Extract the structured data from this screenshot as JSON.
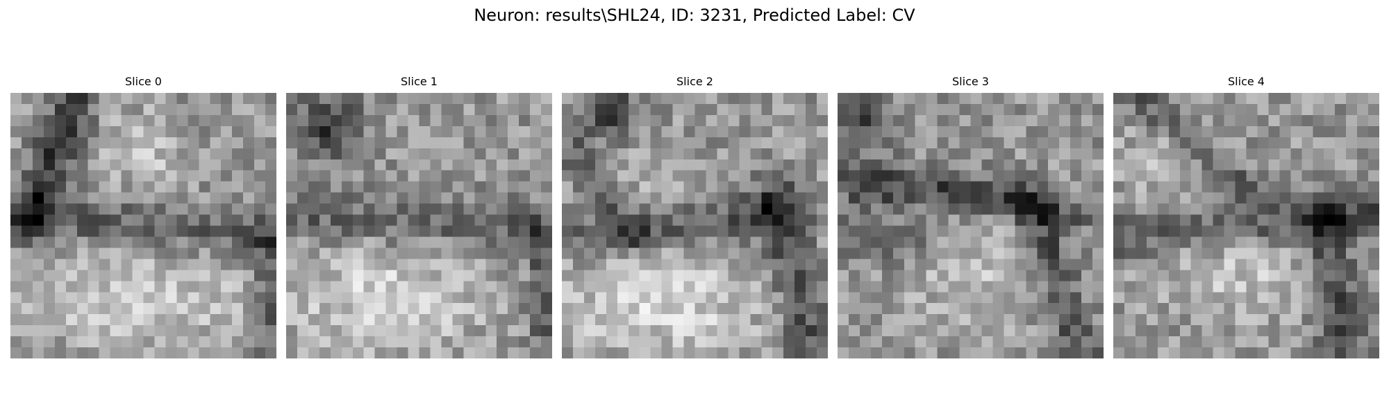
{
  "figure": {
    "title": "Neuron: results\\SHL24, ID: 3231, Predicted Label: CV",
    "colormap": "gray",
    "grid_size": 24
  },
  "slices": [
    {
      "label": "Slice 0"
    },
    {
      "label": "Slice 1"
    },
    {
      "label": "Slice 2"
    },
    {
      "label": "Slice 3"
    },
    {
      "label": "Slice 4"
    }
  ]
}
